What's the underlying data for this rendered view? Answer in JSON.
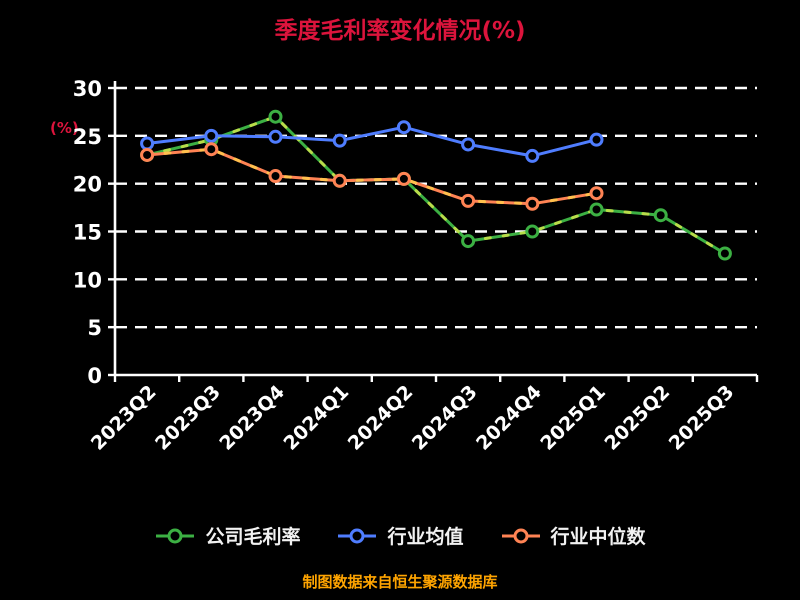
{
  "chart_data": {
    "type": "line",
    "title": "季度毛利率变化情况(%)",
    "ylabel": "(%)",
    "categories": [
      "2023Q2",
      "2023Q3",
      "2023Q4",
      "2024Q1",
      "2024Q2",
      "2024Q3",
      "2024Q4",
      "2025Q1",
      "2025Q2",
      "2025Q3"
    ],
    "series": [
      {
        "name": "公司毛利率",
        "color": "#3cb043",
        "accent": "#b9dc4a",
        "values": [
          23.0,
          24.6,
          27.0,
          20.3,
          20.5,
          14.0,
          15.0,
          17.3,
          16.7,
          12.7
        ]
      },
      {
        "name": "行业均值",
        "color": "#4f7dff",
        "accent": null,
        "values": [
          24.2,
          25.0,
          24.9,
          24.5,
          25.9,
          24.1,
          22.9,
          24.6,
          null,
          null
        ]
      },
      {
        "name": "行业中位数",
        "color": "#ff8354",
        "accent": "#ffc04d",
        "values": [
          23.0,
          23.6,
          20.8,
          20.3,
          20.5,
          18.2,
          17.9,
          19.0,
          null,
          null
        ]
      }
    ],
    "ylim": [
      0,
      30
    ],
    "yticks": [
      0,
      5,
      10,
      15,
      20,
      25,
      30
    ],
    "grid": "horizontal-dashed",
    "legend_position": "bottom",
    "background": "#000000",
    "title_color": "#dc143c",
    "axis_color": "#ffffff",
    "footer_color": "#ffa400"
  },
  "footer": {
    "text": "制图数据来自恒生聚源数据库"
  }
}
